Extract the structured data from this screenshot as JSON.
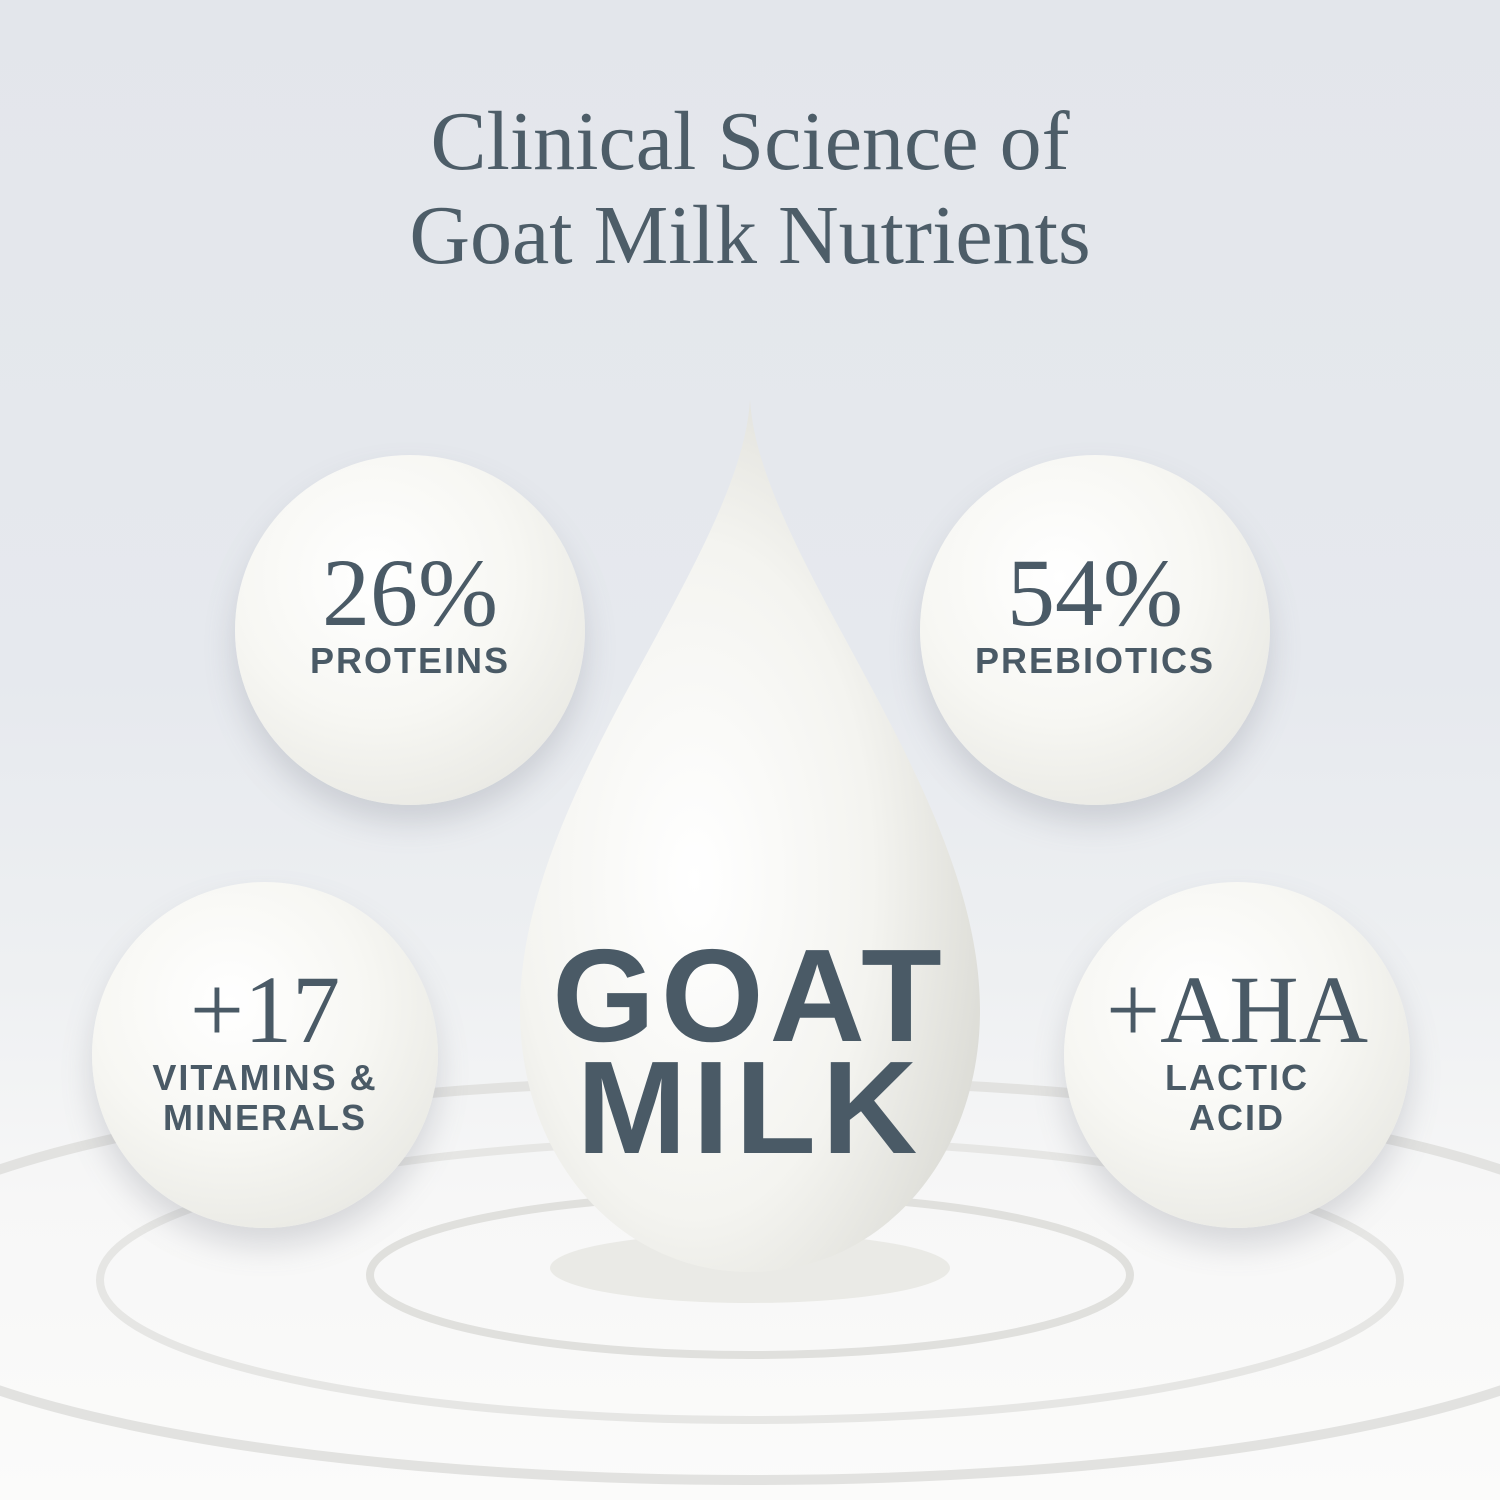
{
  "title": {
    "line1": "Clinical Science of",
    "line2": "Goat Milk Nutrients"
  },
  "center": {
    "line1": "GOAT",
    "line2": "MILK"
  },
  "bubbles": [
    {
      "value": "26%",
      "label1": "PROTEINS",
      "label2": ""
    },
    {
      "value": "54%",
      "label1": "PREBIOTICS",
      "label2": ""
    },
    {
      "value": "+17",
      "label1": "VITAMINS &",
      "label2": "MINERALS"
    },
    {
      "value": "+AHA",
      "label1": "LACTIC",
      "label2": "ACID"
    }
  ],
  "colors": {
    "text": "#4a5a66",
    "background": "#e4e7ec",
    "milk": "#f7f7f3"
  }
}
